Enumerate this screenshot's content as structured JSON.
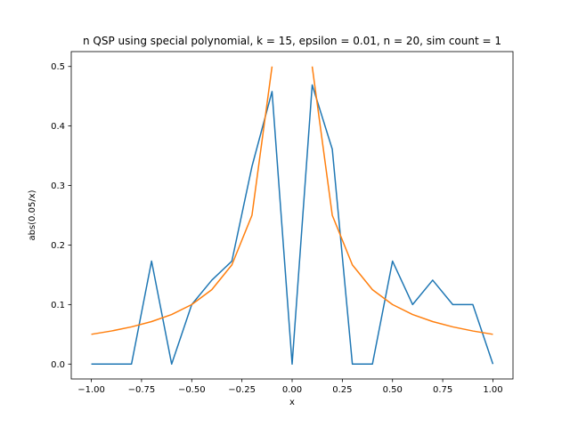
{
  "chart_data": {
    "type": "line",
    "title": "n QSP using special polynomial, k = 15, epsilon = 0.01, n = 20, sim count = 1",
    "xlabel": "x",
    "ylabel": "abs(0.05/x)",
    "xlim": [
      -1.1,
      1.1
    ],
    "ylim": [
      -0.025,
      0.525
    ],
    "xticks": [
      -1.0,
      -0.75,
      -0.5,
      -0.25,
      0.0,
      0.25,
      0.5,
      0.75,
      1.0
    ],
    "xtick_labels": [
      "−1.00",
      "−0.75",
      "−0.50",
      "−0.25",
      "0.00",
      "0.25",
      "0.50",
      "0.75",
      "1.00"
    ],
    "yticks": [
      0.0,
      0.1,
      0.2,
      0.3,
      0.4,
      0.5
    ],
    "ytick_labels": [
      "0.0",
      "0.1",
      "0.2",
      "0.3",
      "0.4",
      "0.5"
    ],
    "grid": false,
    "series": [
      {
        "color": "#1f77b4",
        "segments": [
          [
            [
              -1.0,
              0.0
            ],
            [
              -0.9,
              0.0
            ],
            [
              -0.8,
              0.0
            ],
            [
              -0.7,
              0.173
            ],
            [
              -0.6,
              0.0
            ],
            [
              -0.5,
              0.1
            ],
            [
              -0.4,
              0.141
            ],
            [
              -0.3,
              0.173
            ],
            [
              -0.2,
              0.332
            ],
            [
              -0.1,
              0.458
            ],
            [
              0.0,
              0.0
            ],
            [
              0.1,
              0.469
            ],
            [
              0.2,
              0.361
            ],
            [
              0.3,
              0.0
            ],
            [
              0.4,
              0.0
            ],
            [
              0.5,
              0.173
            ],
            [
              0.6,
              0.1
            ],
            [
              0.7,
              0.141
            ],
            [
              0.8,
              0.1
            ],
            [
              0.9,
              0.1
            ],
            [
              1.0,
              0.0
            ]
          ]
        ]
      },
      {
        "color": "#ff7f0e",
        "segments": [
          [
            [
              -1.0,
              0.05
            ],
            [
              -0.9,
              0.0556
            ],
            [
              -0.8,
              0.0625
            ],
            [
              -0.7,
              0.0714
            ],
            [
              -0.6,
              0.0833
            ],
            [
              -0.5,
              0.1
            ],
            [
              -0.4,
              0.125
            ],
            [
              -0.3,
              0.1667
            ],
            [
              -0.2,
              0.25
            ],
            [
              -0.1,
              0.5
            ]
          ],
          [
            [
              0.1,
              0.5
            ],
            [
              0.2,
              0.25
            ],
            [
              0.3,
              0.1667
            ],
            [
              0.4,
              0.125
            ],
            [
              0.5,
              0.1
            ],
            [
              0.6,
              0.0833
            ],
            [
              0.7,
              0.0714
            ],
            [
              0.8,
              0.0625
            ],
            [
              0.9,
              0.0556
            ],
            [
              1.0,
              0.05
            ]
          ]
        ]
      }
    ]
  }
}
